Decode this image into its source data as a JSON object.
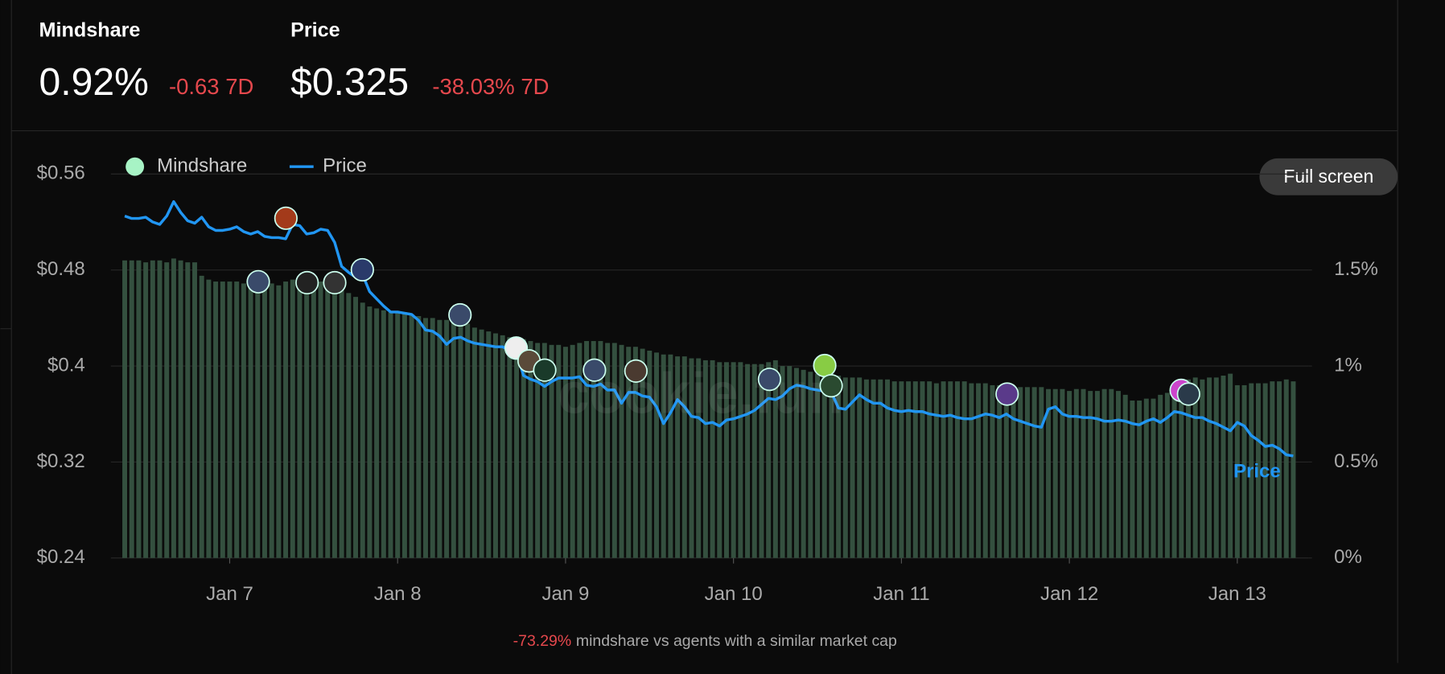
{
  "header": {
    "mindshare": {
      "label": "Mindshare",
      "value": "0.92%",
      "change": "-0.63 7D"
    },
    "price": {
      "label": "Price",
      "value": "$0.325",
      "change": "-38.03% 7D"
    }
  },
  "button": "Full screen",
  "watermark": "cookie.fun",
  "footer": {
    "change": "-73.29%",
    "text": "mindshare vs agents with a similar market cap"
  },
  "chart_data": {
    "type": "bar",
    "categories": [
      null,
      null,
      null,
      null,
      null,
      null,
      null,
      null,
      null,
      null,
      null,
      null,
      null,
      null,
      null,
      "Jan 7",
      null,
      null,
      null,
      null,
      null,
      null,
      null,
      null,
      null,
      null,
      null,
      null,
      null,
      null,
      null,
      null,
      null,
      null,
      null,
      null,
      null,
      null,
      null,
      "Jan 8",
      null,
      null,
      null,
      null,
      null,
      null,
      null,
      null,
      null,
      null,
      null,
      null,
      null,
      null,
      null,
      null,
      null,
      null,
      null,
      null,
      null,
      null,
      null,
      "Jan 9",
      null,
      null,
      null,
      null,
      null,
      null,
      null,
      null,
      null,
      null,
      null,
      null,
      null,
      null,
      null,
      null,
      null,
      null,
      null,
      null,
      null,
      null,
      null,
      "Jan 10",
      null,
      null,
      null,
      null,
      null,
      null,
      null,
      null,
      null,
      null,
      null,
      null,
      null,
      null,
      null,
      null,
      null,
      null,
      null,
      null,
      null,
      null,
      null,
      "Jan 11",
      null,
      null,
      null,
      null,
      null,
      null,
      null,
      null,
      null,
      null,
      null,
      null,
      null,
      null,
      null,
      null,
      null,
      null,
      null,
      null,
      null,
      null,
      null,
      "Jan 12",
      null,
      null,
      null,
      null,
      null,
      null,
      null,
      null,
      null,
      null,
      null,
      null,
      null,
      null,
      null,
      null,
      null,
      null,
      null,
      null,
      null,
      null,
      null,
      "Jan 13",
      null,
      null,
      null,
      null,
      null,
      null,
      null,
      null
    ],
    "series": [
      {
        "name": "Mindshare",
        "type": "bar",
        "axis": "y2",
        "color": "#34503f",
        "legend_color": "#a7f3c5",
        "values": [
          1.55,
          1.55,
          1.55,
          1.54,
          1.55,
          1.55,
          1.54,
          1.56,
          1.55,
          1.54,
          1.54,
          1.47,
          1.45,
          1.44,
          1.44,
          1.44,
          1.44,
          1.43,
          1.43,
          1.44,
          1.43,
          1.43,
          1.42,
          1.44,
          1.45,
          1.46,
          1.46,
          1.45,
          1.44,
          1.43,
          1.41,
          1.4,
          1.38,
          1.36,
          1.33,
          1.31,
          1.3,
          1.29,
          1.28,
          1.28,
          1.28,
          1.27,
          1.26,
          1.25,
          1.25,
          1.24,
          1.24,
          1.23,
          1.23,
          1.22,
          1.2,
          1.19,
          1.18,
          1.17,
          1.16,
          1.15,
          1.14,
          1.14,
          1.13,
          1.12,
          1.12,
          1.11,
          1.11,
          1.1,
          1.11,
          1.12,
          1.13,
          1.13,
          1.13,
          1.12,
          1.12,
          1.11,
          1.1,
          1.1,
          1.09,
          1.08,
          1.07,
          1.06,
          1.06,
          1.05,
          1.05,
          1.04,
          1.04,
          1.03,
          1.03,
          1.02,
          1.02,
          1.02,
          1.02,
          1.01,
          1.01,
          1.01,
          1.02,
          1.03,
          1.0,
          1.0,
          0.99,
          0.98,
          0.97,
          0.96,
          0.96,
          0.95,
          0.95,
          0.94,
          0.94,
          0.94,
          0.93,
          0.93,
          0.93,
          0.93,
          0.92,
          0.92,
          0.92,
          0.92,
          0.92,
          0.92,
          0.91,
          0.92,
          0.92,
          0.92,
          0.92,
          0.91,
          0.91,
          0.91,
          0.9,
          0.9,
          0.89,
          0.89,
          0.89,
          0.89,
          0.89,
          0.89,
          0.88,
          0.88,
          0.88,
          0.87,
          0.88,
          0.88,
          0.87,
          0.87,
          0.88,
          0.88,
          0.87,
          0.85,
          0.82,
          0.82,
          0.83,
          0.83,
          0.85,
          0.86,
          0.89,
          0.93,
          0.93,
          0.94,
          0.93,
          0.94,
          0.94,
          0.95,
          0.96,
          0.9,
          0.9,
          0.91,
          0.91,
          0.91,
          0.92,
          0.92,
          0.93,
          0.92
        ]
      },
      {
        "name": "Price",
        "type": "line",
        "color": "#2196f3",
        "values": [
          0.525,
          0.523,
          0.523,
          0.524,
          0.52,
          0.518,
          0.525,
          0.537,
          0.528,
          0.521,
          0.519,
          0.524,
          0.516,
          0.513,
          0.513,
          0.514,
          0.516,
          0.512,
          0.51,
          0.512,
          0.508,
          0.507,
          0.507,
          0.506,
          0.518,
          0.517,
          0.51,
          0.511,
          0.514,
          0.513,
          0.503,
          0.483,
          0.478,
          0.474,
          0.476,
          0.462,
          0.456,
          0.45,
          0.445,
          0.445,
          0.444,
          0.443,
          0.438,
          0.43,
          0.429,
          0.425,
          0.418,
          0.423,
          0.424,
          0.421,
          0.419,
          0.418,
          0.417,
          0.416,
          0.416,
          0.413,
          0.411,
          0.392,
          0.389,
          0.387,
          0.383,
          0.387,
          0.39,
          0.39,
          0.39,
          0.391,
          0.384,
          0.383,
          0.385,
          0.38,
          0.38,
          0.369,
          0.378,
          0.378,
          0.375,
          0.374,
          0.366,
          0.352,
          0.361,
          0.372,
          0.366,
          0.358,
          0.357,
          0.352,
          0.353,
          0.35,
          0.355,
          0.356,
          0.358,
          0.36,
          0.363,
          0.368,
          0.373,
          0.372,
          0.375,
          0.381,
          0.384,
          0.383,
          0.381,
          0.38,
          0.379,
          0.378,
          0.365,
          0.364,
          0.37,
          0.376,
          0.372,
          0.369,
          0.369,
          0.365,
          0.363,
          0.362,
          0.363,
          0.362,
          0.362,
          0.36,
          0.359,
          0.358,
          0.359,
          0.357,
          0.356,
          0.356,
          0.358,
          0.36,
          0.359,
          0.357,
          0.36,
          0.356,
          0.354,
          0.352,
          0.35,
          0.349,
          0.364,
          0.366,
          0.36,
          0.358,
          0.358,
          0.357,
          0.357,
          0.356,
          0.354,
          0.354,
          0.355,
          0.354,
          0.352,
          0.351,
          0.354,
          0.356,
          0.353,
          0.357,
          0.362,
          0.361,
          0.359,
          0.357,
          0.357,
          0.354,
          0.352,
          0.349,
          0.346,
          0.353,
          0.35,
          0.342,
          0.338,
          0.333,
          0.334,
          0.331,
          0.326,
          0.325
        ]
      }
    ],
    "ylim": [
      0.24,
      0.56
    ],
    "yticks": [
      {
        "value": 0.24,
        "label": "$0.24"
      },
      {
        "value": 0.32,
        "label": "$0.32"
      },
      {
        "value": 0.4,
        "label": "$0.4"
      },
      {
        "value": 0.48,
        "label": "$0.48"
      },
      {
        "value": 0.56,
        "label": "$0.56"
      }
    ],
    "y2lim": [
      0,
      2
    ],
    "y2ticks": [
      {
        "value": 0,
        "label": "0%"
      },
      {
        "value": 0.5,
        "label": "0.5%"
      },
      {
        "value": 1,
        "label": "1%"
      },
      {
        "value": 1.5,
        "label": "1.5%"
      }
    ],
    "grid": true
  }
}
